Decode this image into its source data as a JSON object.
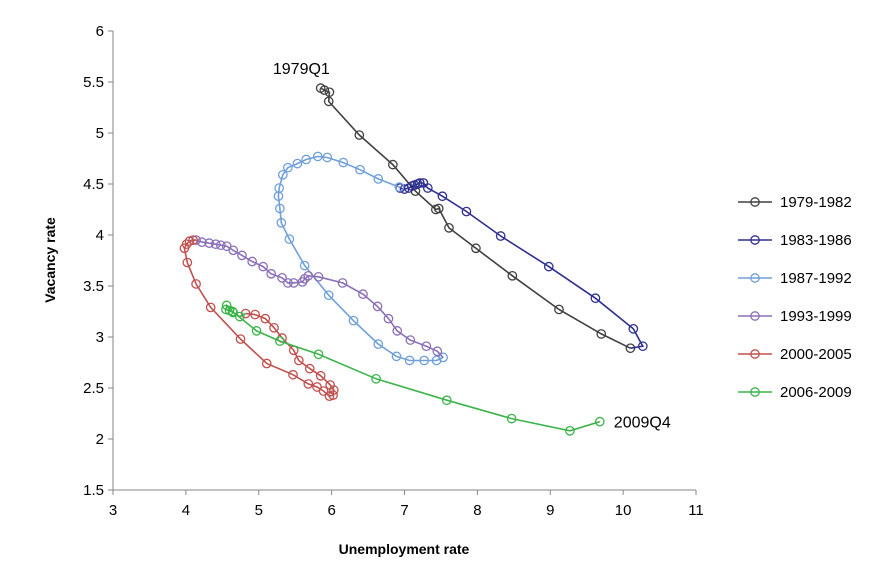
{
  "chart_data": {
    "type": "line",
    "title": "",
    "xlabel": "Unemployment rate",
    "ylabel": "Vacancy rate",
    "xlim": [
      3,
      11
    ],
    "ylim": [
      1.5,
      6
    ],
    "xticks": [
      3,
      4,
      5,
      6,
      7,
      8,
      9,
      10,
      11
    ],
    "yticks": [
      1.5,
      2,
      2.5,
      3,
      3.5,
      4,
      4.5,
      5,
      5.5,
      6
    ],
    "x_tick_labels": [
      "3",
      "4",
      "5",
      "6",
      "7",
      "8",
      "9",
      "10",
      "11"
    ],
    "y_tick_labels": [
      "1.5",
      "2",
      "2.5",
      "3",
      "3.5",
      "4",
      "4.5",
      "5",
      "5.5",
      "6"
    ],
    "grid": false,
    "legend_position": "right",
    "markers": "open-circle",
    "annotations": [
      {
        "text": "1979Q1",
        "x": 5.88,
        "y": 5.45,
        "anchor": "above-left"
      },
      {
        "text": "2009Q4",
        "x": 9.68,
        "y": 2.17,
        "anchor": "right"
      }
    ],
    "series": [
      {
        "name": "1979-1982",
        "color": "#404040",
        "points": [
          [
            5.85,
            5.44
          ],
          [
            5.9,
            5.42
          ],
          [
            5.97,
            5.4
          ],
          [
            5.96,
            5.31
          ],
          [
            6.38,
            4.98
          ],
          [
            6.84,
            4.69
          ],
          [
            7.15,
            4.43
          ],
          [
            7.43,
            4.25
          ],
          [
            7.47,
            4.26
          ],
          [
            7.61,
            4.07
          ],
          [
            7.98,
            3.87
          ],
          [
            8.48,
            3.6
          ],
          [
            9.12,
            3.27
          ],
          [
            9.7,
            3.03
          ],
          [
            10.1,
            2.89
          ]
        ]
      },
      {
        "name": "1983-1986",
        "color": "#2f2f8f",
        "points": [
          [
            10.27,
            2.91
          ],
          [
            10.14,
            3.08
          ],
          [
            9.62,
            3.38
          ],
          [
            8.98,
            3.69
          ],
          [
            8.32,
            3.99
          ],
          [
            7.85,
            4.23
          ],
          [
            7.52,
            4.38
          ],
          [
            7.32,
            4.46
          ],
          [
            7.26,
            4.51
          ],
          [
            7.21,
            4.51
          ],
          [
            7.18,
            4.5
          ],
          [
            7.14,
            4.49
          ],
          [
            7.1,
            4.48
          ],
          [
            7.06,
            4.46
          ],
          [
            7.0,
            4.45
          ],
          [
            6.94,
            4.46
          ]
        ]
      },
      {
        "name": "1987-1992",
        "color": "#6f9fd8",
        "points": [
          [
            6.93,
            4.47
          ],
          [
            6.64,
            4.55
          ],
          [
            6.39,
            4.64
          ],
          [
            6.16,
            4.71
          ],
          [
            5.94,
            4.76
          ],
          [
            5.81,
            4.77
          ],
          [
            5.65,
            4.74
          ],
          [
            5.53,
            4.7
          ],
          [
            5.4,
            4.66
          ],
          [
            5.33,
            4.59
          ],
          [
            5.28,
            4.46
          ],
          [
            5.27,
            4.38
          ],
          [
            5.29,
            4.26
          ],
          [
            5.31,
            4.12
          ],
          [
            5.42,
            3.96
          ],
          [
            5.63,
            3.7
          ],
          [
            5.96,
            3.41
          ],
          [
            6.3,
            3.16
          ],
          [
            6.64,
            2.93
          ],
          [
            6.89,
            2.81
          ],
          [
            7.07,
            2.77
          ],
          [
            7.27,
            2.77
          ],
          [
            7.44,
            2.77
          ],
          [
            7.53,
            2.8
          ]
        ]
      },
      {
        "name": "1993-1999",
        "color": "#8a6fb8",
        "points": [
          [
            7.45,
            2.86
          ],
          [
            7.3,
            2.91
          ],
          [
            7.08,
            2.97
          ],
          [
            6.9,
            3.06
          ],
          [
            6.78,
            3.18
          ],
          [
            6.63,
            3.3
          ],
          [
            6.43,
            3.42
          ],
          [
            6.15,
            3.53
          ],
          [
            5.82,
            3.59
          ],
          [
            5.68,
            3.6
          ],
          [
            5.63,
            3.57
          ],
          [
            5.6,
            3.54
          ],
          [
            5.48,
            3.53
          ],
          [
            5.4,
            3.53
          ],
          [
            5.32,
            3.58
          ],
          [
            5.17,
            3.62
          ],
          [
            5.06,
            3.69
          ],
          [
            4.91,
            3.74
          ],
          [
            4.77,
            3.8
          ],
          [
            4.65,
            3.85
          ],
          [
            4.56,
            3.89
          ],
          [
            4.48,
            3.9
          ],
          [
            4.41,
            3.91
          ],
          [
            4.32,
            3.92
          ],
          [
            4.22,
            3.93
          ],
          [
            4.14,
            3.95
          ]
        ]
      },
      {
        "name": "2000-2005",
        "color": "#c0504d",
        "points": [
          [
            4.1,
            3.95
          ],
          [
            4.05,
            3.94
          ],
          [
            4.01,
            3.91
          ],
          [
            3.98,
            3.87
          ],
          [
            4.02,
            3.73
          ],
          [
            4.14,
            3.52
          ],
          [
            4.34,
            3.29
          ],
          [
            4.75,
            2.98
          ],
          [
            5.11,
            2.74
          ],
          [
            5.47,
            2.63
          ],
          [
            5.68,
            2.54
          ],
          [
            5.8,
            2.51
          ],
          [
            5.89,
            2.47
          ],
          [
            5.97,
            2.42
          ],
          [
            6.02,
            2.43
          ],
          [
            6.03,
            2.48
          ],
          [
            5.98,
            2.53
          ],
          [
            5.85,
            2.62
          ],
          [
            5.7,
            2.69
          ],
          [
            5.55,
            2.77
          ],
          [
            5.48,
            2.87
          ],
          [
            5.32,
            2.99
          ],
          [
            5.21,
            3.09
          ],
          [
            5.09,
            3.18
          ],
          [
            4.95,
            3.22
          ],
          [
            4.82,
            3.23
          ]
        ]
      },
      {
        "name": "2006-2009",
        "color": "#3cb44b",
        "points": [
          [
            4.74,
            3.2
          ],
          [
            4.65,
            3.24
          ],
          [
            4.6,
            3.26
          ],
          [
            4.55,
            3.27
          ],
          [
            4.56,
            3.31
          ],
          [
            4.64,
            3.25
          ],
          [
            4.97,
            3.06
          ],
          [
            5.29,
            2.96
          ],
          [
            5.82,
            2.83
          ],
          [
            6.61,
            2.59
          ],
          [
            7.58,
            2.38
          ],
          [
            8.47,
            2.2
          ],
          [
            9.27,
            2.08
          ],
          [
            9.68,
            2.17
          ]
        ]
      }
    ]
  }
}
